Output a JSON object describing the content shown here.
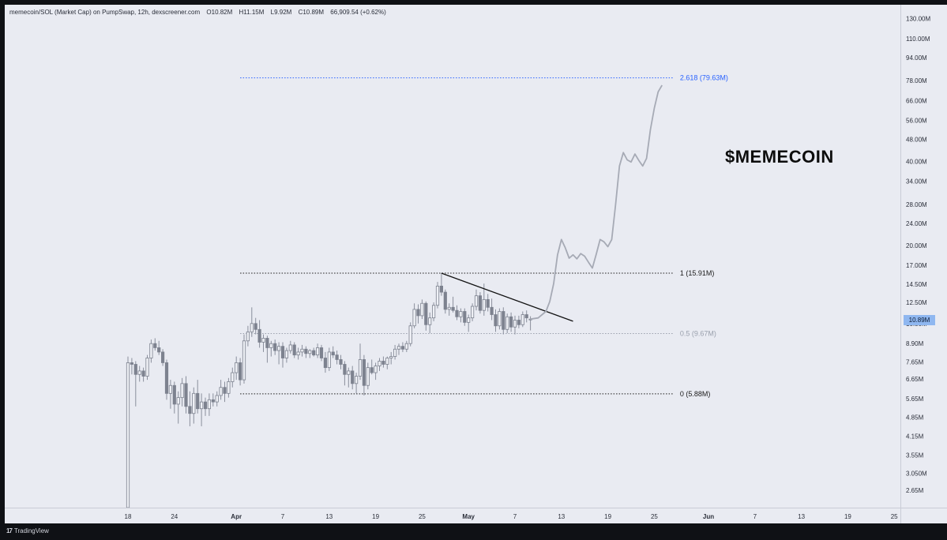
{
  "legend": {
    "symbol": "memecoin/SOL (Market Cap) on PumpSwap, 12h, dexscreener.com",
    "open": "O10.82M",
    "high": "H11.15M",
    "low": "L9.92M",
    "close": "C10.89M",
    "change": "66,909.54 (+0.62%)"
  },
  "annotation_title": "$MEMECOIN",
  "current_price_tag": "10.89M",
  "fib_levels": [
    {
      "label": "2.618 (79.63M)",
      "value": 79.63,
      "color": "#2962ff"
    },
    {
      "label": "1 (15.91M)",
      "value": 15.91,
      "color": "#1a1a1a"
    },
    {
      "label": "0.5 (9.67M)",
      "value": 9.67,
      "color": "#9aa0ad"
    },
    {
      "label": "0 (5.88M)",
      "value": 5.88,
      "color": "#1a1a1a"
    }
  ],
  "branding": "TradingView",
  "colors": {
    "background": "#e9ebf2",
    "candle": "#8a8f9c",
    "projection": "#a6aab5",
    "fib_extension": "#2962ff",
    "price_tag": "#8fb7f0"
  },
  "chart_data": {
    "type": "line",
    "y_scale": "log",
    "ylim": [
      2.3,
      140
    ],
    "price_axis_ticks": [
      "130.00M",
      "110.00M",
      "94.00M",
      "78.00M",
      "66.00M",
      "56.00M",
      "48.00M",
      "40.00M",
      "34.00M",
      "28.00M",
      "24.00M",
      "20.00M",
      "17.00M",
      "14.50M",
      "12.50M",
      "10.50M",
      "8.90M",
      "7.65M",
      "6.65M",
      "5.65M",
      "4.85M",
      "4.15M",
      "3.55M",
      "3.050M",
      "2.65M"
    ],
    "price_axis_values": [
      130,
      110,
      94,
      78,
      66,
      56,
      48,
      40,
      34,
      28,
      24,
      20,
      17,
      14.5,
      12.5,
      10.5,
      8.9,
      7.65,
      6.65,
      5.65,
      4.85,
      4.15,
      3.55,
      3.05,
      2.65
    ],
    "time_axis_ticks": [
      "18",
      "24",
      "Apr",
      "7",
      "13",
      "19",
      "25",
      "May",
      "7",
      "13",
      "19",
      "25",
      "Jun",
      "7",
      "13",
      "19",
      "25"
    ],
    "time_axis_days": [
      0,
      6,
      14,
      20,
      26,
      32,
      38,
      44,
      50,
      56,
      62,
      68,
      75,
      81,
      87,
      93,
      99
    ],
    "candles": [
      {
        "d": 0.0,
        "o": 2.3,
        "h": 8.0,
        "l": 2.3,
        "c": 7.6
      },
      {
        "d": 0.5,
        "o": 7.6,
        "h": 7.9,
        "l": 6.9,
        "c": 7.5
      },
      {
        "d": 1.0,
        "o": 7.5,
        "h": 7.7,
        "l": 5.3,
        "c": 6.9
      },
      {
        "d": 1.5,
        "o": 6.9,
        "h": 7.4,
        "l": 6.5,
        "c": 7.1
      },
      {
        "d": 2.0,
        "o": 7.1,
        "h": 7.3,
        "l": 6.5,
        "c": 6.8
      },
      {
        "d": 2.5,
        "o": 6.8,
        "h": 8.1,
        "l": 6.6,
        "c": 7.9
      },
      {
        "d": 3.0,
        "o": 7.9,
        "h": 9.2,
        "l": 7.6,
        "c": 8.9
      },
      {
        "d": 3.5,
        "o": 8.9,
        "h": 9.3,
        "l": 8.4,
        "c": 8.6
      },
      {
        "d": 4.0,
        "o": 8.6,
        "h": 9.1,
        "l": 8.1,
        "c": 8.3
      },
      {
        "d": 4.5,
        "o": 8.3,
        "h": 8.5,
        "l": 7.4,
        "c": 7.6
      },
      {
        "d": 5.0,
        "o": 7.6,
        "h": 7.8,
        "l": 5.6,
        "c": 5.9
      },
      {
        "d": 5.5,
        "o": 5.9,
        "h": 6.6,
        "l": 5.2,
        "c": 6.3
      },
      {
        "d": 6.0,
        "o": 6.3,
        "h": 6.5,
        "l": 5.0,
        "c": 5.4
      },
      {
        "d": 6.5,
        "o": 5.4,
        "h": 6.0,
        "l": 4.6,
        "c": 5.7
      },
      {
        "d": 7.0,
        "o": 5.7,
        "h": 6.7,
        "l": 5.3,
        "c": 6.4
      },
      {
        "d": 7.5,
        "o": 6.4,
        "h": 6.8,
        "l": 5.0,
        "c": 5.3
      },
      {
        "d": 8.0,
        "o": 5.3,
        "h": 6.0,
        "l": 4.5,
        "c": 5.0
      },
      {
        "d": 8.5,
        "o": 5.0,
        "h": 6.2,
        "l": 4.6,
        "c": 5.9
      },
      {
        "d": 9.0,
        "o": 5.9,
        "h": 6.6,
        "l": 5.0,
        "c": 5.2
      },
      {
        "d": 9.5,
        "o": 5.2,
        "h": 5.9,
        "l": 4.5,
        "c": 5.5
      },
      {
        "d": 10.0,
        "o": 5.5,
        "h": 5.7,
        "l": 4.9,
        "c": 5.2
      },
      {
        "d": 10.5,
        "o": 5.2,
        "h": 5.9,
        "l": 4.9,
        "c": 5.6
      },
      {
        "d": 11.0,
        "o": 5.6,
        "h": 5.9,
        "l": 5.3,
        "c": 5.5
      },
      {
        "d": 11.5,
        "o": 5.5,
        "h": 6.0,
        "l": 5.3,
        "c": 5.8
      },
      {
        "d": 12.0,
        "o": 5.8,
        "h": 6.6,
        "l": 5.6,
        "c": 6.2
      },
      {
        "d": 12.5,
        "o": 6.2,
        "h": 6.5,
        "l": 5.5,
        "c": 5.9
      },
      {
        "d": 13.0,
        "o": 5.9,
        "h": 6.7,
        "l": 5.7,
        "c": 6.5
      },
      {
        "d": 13.5,
        "o": 6.5,
        "h": 7.3,
        "l": 6.2,
        "c": 7.0
      },
      {
        "d": 14.0,
        "o": 7.0,
        "h": 8.0,
        "l": 6.6,
        "c": 7.6
      },
      {
        "d": 14.5,
        "o": 7.6,
        "h": 7.9,
        "l": 6.3,
        "c": 6.6
      },
      {
        "d": 15.0,
        "o": 6.6,
        "h": 9.6,
        "l": 6.4,
        "c": 9.1
      },
      {
        "d": 15.5,
        "o": 9.1,
        "h": 10.3,
        "l": 8.7,
        "c": 9.8
      },
      {
        "d": 16.0,
        "o": 9.8,
        "h": 12.0,
        "l": 9.4,
        "c": 10.5
      },
      {
        "d": 16.5,
        "o": 10.5,
        "h": 11.0,
        "l": 9.6,
        "c": 10.0
      },
      {
        "d": 17.0,
        "o": 10.0,
        "h": 10.8,
        "l": 8.6,
        "c": 9.0
      },
      {
        "d": 17.5,
        "o": 9.0,
        "h": 9.6,
        "l": 8.3,
        "c": 9.3
      },
      {
        "d": 18.0,
        "o": 9.3,
        "h": 9.5,
        "l": 7.6,
        "c": 8.6
      },
      {
        "d": 18.5,
        "o": 8.6,
        "h": 9.1,
        "l": 8.0,
        "c": 8.9
      },
      {
        "d": 19.0,
        "o": 8.9,
        "h": 9.2,
        "l": 8.1,
        "c": 8.4
      },
      {
        "d": 19.5,
        "o": 8.4,
        "h": 9.0,
        "l": 7.5,
        "c": 8.7
      },
      {
        "d": 20.0,
        "o": 8.7,
        "h": 9.0,
        "l": 7.3,
        "c": 7.9
      },
      {
        "d": 20.5,
        "o": 7.9,
        "h": 8.6,
        "l": 7.6,
        "c": 8.4
      },
      {
        "d": 21.0,
        "o": 8.4,
        "h": 9.1,
        "l": 8.2,
        "c": 8.8
      },
      {
        "d": 21.5,
        "o": 8.8,
        "h": 9.0,
        "l": 7.9,
        "c": 8.1
      },
      {
        "d": 22.0,
        "o": 8.1,
        "h": 8.6,
        "l": 7.8,
        "c": 8.3
      },
      {
        "d": 22.5,
        "o": 8.3,
        "h": 8.8,
        "l": 8.0,
        "c": 8.5
      },
      {
        "d": 23.0,
        "o": 8.5,
        "h": 8.7,
        "l": 7.9,
        "c": 8.2
      },
      {
        "d": 23.5,
        "o": 8.2,
        "h": 8.5,
        "l": 7.9,
        "c": 8.4
      },
      {
        "d": 24.0,
        "o": 8.4,
        "h": 8.6,
        "l": 8.0,
        "c": 8.1
      },
      {
        "d": 24.5,
        "o": 8.1,
        "h": 8.9,
        "l": 7.9,
        "c": 8.6
      },
      {
        "d": 25.0,
        "o": 8.6,
        "h": 8.8,
        "l": 7.7,
        "c": 7.9
      },
      {
        "d": 25.5,
        "o": 7.9,
        "h": 8.3,
        "l": 7.0,
        "c": 7.3
      },
      {
        "d": 26.0,
        "o": 7.3,
        "h": 8.6,
        "l": 7.1,
        "c": 8.3
      },
      {
        "d": 26.5,
        "o": 8.3,
        "h": 8.7,
        "l": 7.9,
        "c": 8.1
      },
      {
        "d": 27.0,
        "o": 8.1,
        "h": 8.4,
        "l": 7.5,
        "c": 7.8
      },
      {
        "d": 27.5,
        "o": 7.8,
        "h": 8.1,
        "l": 7.2,
        "c": 7.5
      },
      {
        "d": 28.0,
        "o": 7.5,
        "h": 7.7,
        "l": 6.3,
        "c": 6.9
      },
      {
        "d": 28.5,
        "o": 6.9,
        "h": 7.3,
        "l": 6.2,
        "c": 7.1
      },
      {
        "d": 29.0,
        "o": 7.1,
        "h": 7.4,
        "l": 6.1,
        "c": 6.4
      },
      {
        "d": 29.5,
        "o": 6.4,
        "h": 7.0,
        "l": 5.9,
        "c": 6.8
      },
      {
        "d": 30.0,
        "o": 6.8,
        "h": 8.9,
        "l": 6.6,
        "c": 7.8
      },
      {
        "d": 30.5,
        "o": 7.8,
        "h": 8.1,
        "l": 5.8,
        "c": 6.3
      },
      {
        "d": 31.0,
        "o": 6.3,
        "h": 7.6,
        "l": 6.1,
        "c": 7.3
      },
      {
        "d": 31.5,
        "o": 7.3,
        "h": 7.8,
        "l": 6.9,
        "c": 7.0
      },
      {
        "d": 32.0,
        "o": 7.0,
        "h": 7.6,
        "l": 6.6,
        "c": 7.4
      },
      {
        "d": 32.5,
        "o": 7.4,
        "h": 7.9,
        "l": 7.1,
        "c": 7.7
      },
      {
        "d": 33.0,
        "o": 7.7,
        "h": 8.0,
        "l": 7.3,
        "c": 7.5
      },
      {
        "d": 33.5,
        "o": 7.5,
        "h": 8.0,
        "l": 7.2,
        "c": 7.9
      },
      {
        "d": 34.0,
        "o": 7.9,
        "h": 8.3,
        "l": 7.5,
        "c": 8.0
      },
      {
        "d": 34.5,
        "o": 8.0,
        "h": 8.8,
        "l": 7.8,
        "c": 8.5
      },
      {
        "d": 35.0,
        "o": 8.5,
        "h": 8.9,
        "l": 8.1,
        "c": 8.7
      },
      {
        "d": 35.5,
        "o": 8.7,
        "h": 9.0,
        "l": 8.3,
        "c": 8.5
      },
      {
        "d": 36.0,
        "o": 8.5,
        "h": 9.1,
        "l": 8.3,
        "c": 8.9
      },
      {
        "d": 36.5,
        "o": 8.9,
        "h": 10.6,
        "l": 8.7,
        "c": 10.3
      },
      {
        "d": 37.0,
        "o": 10.3,
        "h": 12.4,
        "l": 10.1,
        "c": 11.8
      },
      {
        "d": 37.5,
        "o": 11.8,
        "h": 12.3,
        "l": 10.5,
        "c": 11.2
      },
      {
        "d": 38.0,
        "o": 11.2,
        "h": 12.8,
        "l": 10.9,
        "c": 12.4
      },
      {
        "d": 38.5,
        "o": 12.4,
        "h": 12.6,
        "l": 9.9,
        "c": 10.4
      },
      {
        "d": 39.0,
        "o": 10.4,
        "h": 11.5,
        "l": 9.7,
        "c": 11.0
      },
      {
        "d": 39.5,
        "o": 11.0,
        "h": 12.5,
        "l": 10.7,
        "c": 12.2
      },
      {
        "d": 40.0,
        "o": 12.2,
        "h": 14.8,
        "l": 11.9,
        "c": 14.3
      },
      {
        "d": 40.5,
        "o": 14.3,
        "h": 15.9,
        "l": 13.2,
        "c": 13.6
      },
      {
        "d": 41.0,
        "o": 13.6,
        "h": 13.9,
        "l": 11.4,
        "c": 11.8
      },
      {
        "d": 41.5,
        "o": 11.8,
        "h": 12.4,
        "l": 11.2,
        "c": 12.0
      },
      {
        "d": 42.0,
        "o": 12.0,
        "h": 13.1,
        "l": 11.5,
        "c": 11.7
      },
      {
        "d": 42.5,
        "o": 11.7,
        "h": 12.2,
        "l": 10.8,
        "c": 11.1
      },
      {
        "d": 43.0,
        "o": 11.1,
        "h": 11.9,
        "l": 10.6,
        "c": 11.6
      },
      {
        "d": 43.5,
        "o": 11.6,
        "h": 11.9,
        "l": 10.3,
        "c": 10.6
      },
      {
        "d": 44.0,
        "o": 10.6,
        "h": 11.3,
        "l": 9.8,
        "c": 11.0
      },
      {
        "d": 44.5,
        "o": 11.0,
        "h": 12.4,
        "l": 10.7,
        "c": 12.1
      },
      {
        "d": 45.0,
        "o": 12.1,
        "h": 13.9,
        "l": 11.7,
        "c": 13.2
      },
      {
        "d": 45.5,
        "o": 13.2,
        "h": 13.6,
        "l": 11.4,
        "c": 11.7
      },
      {
        "d": 46.0,
        "o": 11.7,
        "h": 14.6,
        "l": 11.2,
        "c": 12.8
      },
      {
        "d": 46.5,
        "o": 12.8,
        "h": 13.4,
        "l": 11.6,
        "c": 12.0
      },
      {
        "d": 47.0,
        "o": 12.0,
        "h": 12.9,
        "l": 10.8,
        "c": 11.3
      },
      {
        "d": 47.5,
        "o": 11.3,
        "h": 11.8,
        "l": 9.8,
        "c": 10.3
      },
      {
        "d": 48.0,
        "o": 10.3,
        "h": 11.9,
        "l": 10.0,
        "c": 11.6
      },
      {
        "d": 48.5,
        "o": 11.6,
        "h": 12.0,
        "l": 9.6,
        "c": 10.0
      },
      {
        "d": 49.0,
        "o": 10.0,
        "h": 11.4,
        "l": 9.7,
        "c": 11.1
      },
      {
        "d": 49.5,
        "o": 11.1,
        "h": 11.5,
        "l": 9.8,
        "c": 10.2
      },
      {
        "d": 50.0,
        "o": 10.2,
        "h": 11.2,
        "l": 9.6,
        "c": 10.8
      },
      {
        "d": 50.5,
        "o": 10.8,
        "h": 11.2,
        "l": 10.1,
        "c": 10.4
      },
      {
        "d": 51.0,
        "o": 10.4,
        "h": 11.6,
        "l": 10.2,
        "c": 11.3
      },
      {
        "d": 51.5,
        "o": 11.3,
        "h": 11.7,
        "l": 10.6,
        "c": 11.0
      },
      {
        "d": 52.0,
        "o": 10.82,
        "h": 11.15,
        "l": 9.92,
        "c": 10.89
      }
    ],
    "projection": {
      "x": [
        52.0,
        53.0,
        54.0,
        54.5,
        55.0,
        55.5,
        56.0,
        56.5,
        57.0,
        57.5,
        58.0,
        58.5,
        59.0,
        59.5,
        60.0,
        60.5,
        61.0,
        61.5,
        62.0,
        62.5,
        63.0,
        63.5,
        64.0,
        64.5,
        65.0,
        65.5,
        66.0,
        66.5,
        67.0,
        67.5,
        68.0,
        68.5,
        69.0
      ],
      "y": [
        10.89,
        11.0,
        11.6,
        12.6,
        14.6,
        18.5,
        21.0,
        19.6,
        18.0,
        18.5,
        17.9,
        18.7,
        18.3,
        17.4,
        16.6,
        18.6,
        21.0,
        20.6,
        19.8,
        21.0,
        28.0,
        38.5,
        43.0,
        40.5,
        39.8,
        42.5,
        40.3,
        38.5,
        41.0,
        52.0,
        62.0,
        71.0,
        75.0
      ]
    },
    "trendline": {
      "x": [
        40.5,
        57.5
      ],
      "y": [
        15.91,
        10.7
      ]
    }
  }
}
